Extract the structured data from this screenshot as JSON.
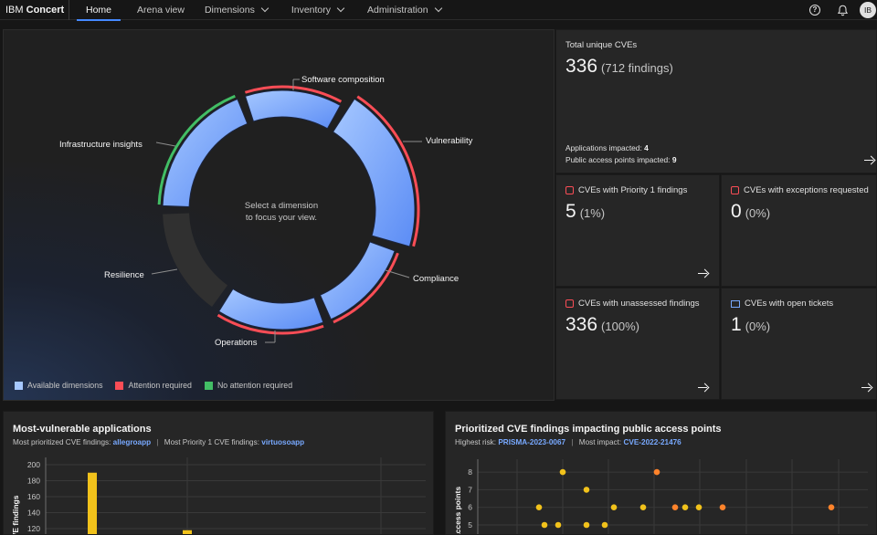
{
  "nav": {
    "brand_prefix": "IBM",
    "brand_name": "Concert",
    "tabs": [
      {
        "label": "Home",
        "active": true,
        "dropdown": false
      },
      {
        "label": "Arena view",
        "active": false,
        "dropdown": false
      },
      {
        "label": "Dimensions",
        "active": false,
        "dropdown": true
      },
      {
        "label": "Inventory",
        "active": false,
        "dropdown": true
      },
      {
        "label": "Administration",
        "active": false,
        "dropdown": true
      }
    ],
    "help_glyph": "?",
    "icons": [
      "help-icon",
      "notification-icon"
    ],
    "avatar_initials": "IB"
  },
  "donut": {
    "center_line1": "Select a dimension",
    "center_line2": "to focus your view.",
    "dimensions": [
      {
        "label": "Software composition",
        "status": "attention"
      },
      {
        "label": "Vulnerability",
        "status": "attention"
      },
      {
        "label": "Compliance",
        "status": "attention"
      },
      {
        "label": "Operations",
        "status": "attention"
      },
      {
        "label": "Resilience",
        "status": "unavailable"
      },
      {
        "label": "Infrastructure insights",
        "status": "no-attention"
      }
    ],
    "legend": [
      {
        "label": "Available dimensions",
        "color": "#a6c8ff"
      },
      {
        "label": "Attention required",
        "color": "#fa4d56"
      },
      {
        "label": "No attention required",
        "color": "#42be65"
      }
    ]
  },
  "kpis": {
    "total": {
      "title": "Total unique CVEs",
      "value": "336",
      "sub": "(712 findings)",
      "apps_label": "Applications impacted:",
      "apps_value": "4",
      "pap_label": "Public access points impacted:",
      "pap_value": "9"
    },
    "priority1": {
      "title": "CVEs with Priority 1 findings",
      "value": "5",
      "sub": "(1%)"
    },
    "exceptions": {
      "title": "CVEs with exceptions requested",
      "value": "0",
      "sub": "(0%)"
    },
    "unassessed": {
      "title": "CVEs with unassessed findings",
      "value": "336",
      "sub": "(100%)"
    },
    "tickets": {
      "title": "CVEs with open tickets",
      "value": "1",
      "sub": "(0%)"
    }
  },
  "apps_panel": {
    "title": "Most-vulnerable applications",
    "sub1_label": "Most prioritized CVE findings:",
    "sub1_value": "allegroapp",
    "sub2_label": "Most Priority 1 CVE findings:",
    "sub2_value": "virtuosoapp",
    "separator": "|"
  },
  "pap_panel": {
    "title": "Prioritized CVE findings impacting public access points",
    "sub1_label": "Highest risk:",
    "sub1_value": "PRISMA-2023-0067",
    "sub2_label": "Most impact:",
    "sub2_value": "CVE-2022-21476",
    "separator": "|"
  },
  "chart_data": [
    {
      "type": "bar",
      "ylabel": "CVE findings",
      "yticks": [
        120,
        140,
        160,
        180,
        200
      ],
      "series": [
        {
          "color": "#f1c21b",
          "values": [
            190,
            118
          ]
        }
      ]
    },
    {
      "type": "scatter",
      "ylabel": "access points",
      "yticks": [
        5,
        6,
        7,
        8
      ],
      "points": [
        {
          "x": 1,
          "y": 6,
          "color": "#f1c21b"
        },
        {
          "x": 2,
          "y": 5,
          "color": "#f1c21b"
        },
        {
          "x": 3,
          "y": 5,
          "color": "#f1c21b"
        },
        {
          "x": 4,
          "y": 8,
          "color": "#f1c21b"
        },
        {
          "x": 5,
          "y": 7,
          "color": "#f1c21b"
        },
        {
          "x": 6,
          "y": 5,
          "color": "#f1c21b"
        },
        {
          "x": 7,
          "y": 5,
          "color": "#f1c21b"
        },
        {
          "x": 8,
          "y": 6,
          "color": "#f1c21b"
        },
        {
          "x": 9,
          "y": 6,
          "color": "#f1c21b"
        },
        {
          "x": 10,
          "y": 8,
          "color": "#ff832b"
        },
        {
          "x": 11,
          "y": 6,
          "color": "#ff832b"
        },
        {
          "x": 12,
          "y": 6,
          "color": "#f1c21b"
        },
        {
          "x": 13,
          "y": 6,
          "color": "#f1c21b"
        },
        {
          "x": 14,
          "y": 6,
          "color": "#ff832b"
        },
        {
          "x": 15,
          "y": 6,
          "color": "#ff832b"
        }
      ]
    }
  ]
}
